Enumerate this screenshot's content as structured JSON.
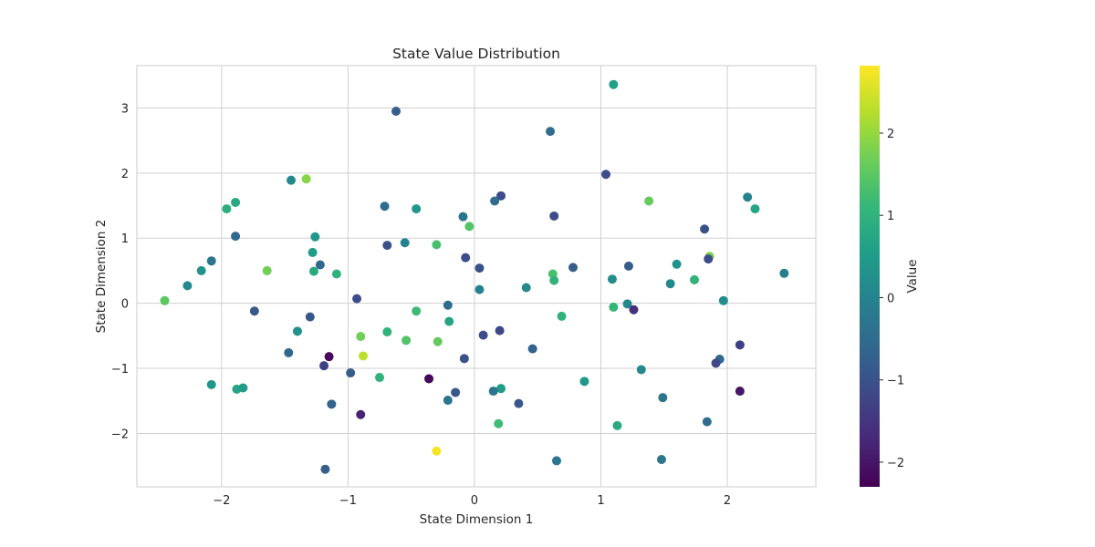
{
  "chart_data": {
    "type": "scatter",
    "title": "State Value Distribution",
    "xlabel": "State Dimension 1",
    "ylabel": "State Dimension 2",
    "xlim": [
      -2.67,
      2.7
    ],
    "ylim": [
      -2.82,
      3.65
    ],
    "xticks": [
      -2,
      -1,
      0,
      1,
      2
    ],
    "yticks": [
      -2,
      -1,
      0,
      1,
      2,
      3
    ],
    "grid": true,
    "colormap": "viridis",
    "colorbar": {
      "label": "Value",
      "range": [
        -2.3,
        2.82
      ],
      "ticks": [
        -2,
        -1,
        0,
        1,
        2
      ]
    },
    "points": [
      {
        "x": 1.1,
        "y": 3.36,
        "v": 0.6
      },
      {
        "x": -0.62,
        "y": 2.95,
        "v": -0.8
      },
      {
        "x": 0.6,
        "y": 2.64,
        "v": -0.5
      },
      {
        "x": 1.04,
        "y": 1.98,
        "v": -1.1
      },
      {
        "x": -1.33,
        "y": 1.91,
        "v": 1.9
      },
      {
        "x": -1.45,
        "y": 1.89,
        "v": 0.1
      },
      {
        "x": 2.16,
        "y": 1.63,
        "v": 0.0
      },
      {
        "x": 1.38,
        "y": 1.57,
        "v": 1.6
      },
      {
        "x": 0.21,
        "y": 1.65,
        "v": -1.1
      },
      {
        "x": 0.16,
        "y": 1.57,
        "v": -0.5
      },
      {
        "x": -1.89,
        "y": 1.55,
        "v": 0.8
      },
      {
        "x": -1.96,
        "y": 1.45,
        "v": 0.9
      },
      {
        "x": 2.22,
        "y": 1.45,
        "v": 0.7
      },
      {
        "x": -0.71,
        "y": 1.49,
        "v": -0.5
      },
      {
        "x": -0.46,
        "y": 1.45,
        "v": 0.4
      },
      {
        "x": -0.09,
        "y": 1.33,
        "v": -0.3
      },
      {
        "x": 0.63,
        "y": 1.34,
        "v": -1.1
      },
      {
        "x": -0.04,
        "y": 1.18,
        "v": 1.4
      },
      {
        "x": 1.82,
        "y": 1.14,
        "v": -1.0
      },
      {
        "x": -1.89,
        "y": 1.03,
        "v": -0.6
      },
      {
        "x": -1.26,
        "y": 1.02,
        "v": 0.4
      },
      {
        "x": -0.69,
        "y": 0.89,
        "v": -1.0
      },
      {
        "x": -0.55,
        "y": 0.93,
        "v": 0.0
      },
      {
        "x": -0.3,
        "y": 0.9,
        "v": 1.3
      },
      {
        "x": -1.28,
        "y": 0.78,
        "v": 0.5
      },
      {
        "x": -0.07,
        "y": 0.7,
        "v": -1.1
      },
      {
        "x": 1.86,
        "y": 0.72,
        "v": 1.8
      },
      {
        "x": 1.85,
        "y": 0.68,
        "v": -1.1
      },
      {
        "x": -2.08,
        "y": 0.65,
        "v": -0.3
      },
      {
        "x": -1.22,
        "y": 0.59,
        "v": -0.6
      },
      {
        "x": 1.6,
        "y": 0.6,
        "v": 0.3
      },
      {
        "x": -1.64,
        "y": 0.5,
        "v": 1.7
      },
      {
        "x": 1.22,
        "y": 0.57,
        "v": -0.8
      },
      {
        "x": 0.78,
        "y": 0.55,
        "v": -0.8
      },
      {
        "x": 0.04,
        "y": 0.54,
        "v": -1.0
      },
      {
        "x": -2.16,
        "y": 0.5,
        "v": 0.3
      },
      {
        "x": -1.27,
        "y": 0.49,
        "v": 0.8
      },
      {
        "x": -1.09,
        "y": 0.45,
        "v": 1.0
      },
      {
        "x": 0.62,
        "y": 0.45,
        "v": 1.3
      },
      {
        "x": 2.45,
        "y": 0.46,
        "v": -0.1
      },
      {
        "x": 1.09,
        "y": 0.37,
        "v": 0.2
      },
      {
        "x": 0.63,
        "y": 0.35,
        "v": 1.0
      },
      {
        "x": 1.74,
        "y": 0.36,
        "v": 1.0
      },
      {
        "x": 1.55,
        "y": 0.3,
        "v": 0.1
      },
      {
        "x": -2.27,
        "y": 0.27,
        "v": 0.1
      },
      {
        "x": 0.41,
        "y": 0.24,
        "v": 0.1
      },
      {
        "x": 0.04,
        "y": 0.21,
        "v": 0.0
      },
      {
        "x": -0.93,
        "y": 0.07,
        "v": -1.1
      },
      {
        "x": -2.45,
        "y": 0.04,
        "v": 1.5
      },
      {
        "x": 1.97,
        "y": 0.04,
        "v": 0.2
      },
      {
        "x": -0.21,
        "y": -0.03,
        "v": -0.5
      },
      {
        "x": 1.21,
        "y": -0.01,
        "v": 0.1
      },
      {
        "x": 1.1,
        "y": -0.06,
        "v": 1.1
      },
      {
        "x": 1.26,
        "y": -0.1,
        "v": -1.6
      },
      {
        "x": -1.74,
        "y": -0.12,
        "v": -0.9
      },
      {
        "x": -0.46,
        "y": -0.12,
        "v": 1.2
      },
      {
        "x": 0.69,
        "y": -0.2,
        "v": 1.0
      },
      {
        "x": -1.3,
        "y": -0.21,
        "v": -0.9
      },
      {
        "x": -0.2,
        "y": -0.28,
        "v": 0.7
      },
      {
        "x": -1.4,
        "y": -0.43,
        "v": 0.3
      },
      {
        "x": 0.2,
        "y": -0.42,
        "v": -1.2
      },
      {
        "x": -0.69,
        "y": -0.44,
        "v": 1.0
      },
      {
        "x": -0.9,
        "y": -0.51,
        "v": 1.7
      },
      {
        "x": 0.07,
        "y": -0.49,
        "v": -1.1
      },
      {
        "x": -0.54,
        "y": -0.57,
        "v": 1.4
      },
      {
        "x": -0.29,
        "y": -0.59,
        "v": 1.6
      },
      {
        "x": 2.1,
        "y": -0.64,
        "v": -1.3
      },
      {
        "x": 0.46,
        "y": -0.7,
        "v": -0.7
      },
      {
        "x": -1.47,
        "y": -0.76,
        "v": -0.6
      },
      {
        "x": -1.15,
        "y": -0.82,
        "v": -2.2
      },
      {
        "x": -0.88,
        "y": -0.81,
        "v": 2.3
      },
      {
        "x": -0.08,
        "y": -0.85,
        "v": -1.0
      },
      {
        "x": 1.94,
        "y": -0.86,
        "v": -0.6
      },
      {
        "x": 1.91,
        "y": -0.92,
        "v": -1.2
      },
      {
        "x": -1.19,
        "y": -0.96,
        "v": -1.3
      },
      {
        "x": 1.32,
        "y": -1.02,
        "v": 0.1
      },
      {
        "x": -0.98,
        "y": -1.07,
        "v": -0.8
      },
      {
        "x": -0.75,
        "y": -1.14,
        "v": 1.0
      },
      {
        "x": -0.36,
        "y": -1.16,
        "v": -2.2
      },
      {
        "x": 0.87,
        "y": -1.2,
        "v": 0.4
      },
      {
        "x": -2.08,
        "y": -1.25,
        "v": 0.4
      },
      {
        "x": -1.88,
        "y": -1.32,
        "v": 0.7
      },
      {
        "x": -1.83,
        "y": -1.3,
        "v": 0.5
      },
      {
        "x": 0.21,
        "y": -1.31,
        "v": 0.5
      },
      {
        "x": 0.15,
        "y": -1.35,
        "v": -0.3
      },
      {
        "x": 2.1,
        "y": -1.35,
        "v": -2.0
      },
      {
        "x": -0.15,
        "y": -1.37,
        "v": -0.9
      },
      {
        "x": 1.49,
        "y": -1.45,
        "v": -0.3
      },
      {
        "x": -0.21,
        "y": -1.49,
        "v": -0.3
      },
      {
        "x": 0.35,
        "y": -1.54,
        "v": -0.9
      },
      {
        "x": -1.13,
        "y": -1.55,
        "v": -0.7
      },
      {
        "x": -0.9,
        "y": -1.71,
        "v": -1.8
      },
      {
        "x": 1.84,
        "y": -1.82,
        "v": -0.5
      },
      {
        "x": 0.19,
        "y": -1.85,
        "v": 1.2
      },
      {
        "x": 1.13,
        "y": -1.88,
        "v": 0.8
      },
      {
        "x": -0.3,
        "y": -2.27,
        "v": 2.75
      },
      {
        "x": 1.48,
        "y": -2.4,
        "v": -0.3
      },
      {
        "x": 0.65,
        "y": -2.42,
        "v": -0.3
      },
      {
        "x": -1.18,
        "y": -2.55,
        "v": -0.8
      }
    ]
  }
}
